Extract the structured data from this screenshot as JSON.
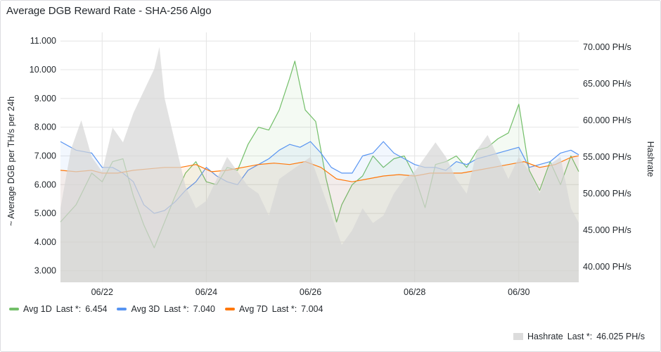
{
  "panel": {
    "title": "Average DGB Reward Rate - SHA-256 Algo"
  },
  "legend": {
    "items": [
      {
        "name": "Avg 1D",
        "last_label": "Last *:",
        "last_value": "6.454",
        "color": "#73bf69"
      },
      {
        "name": "Avg 3D",
        "last_label": "Last *:",
        "last_value": "7.040",
        "color": "#5794f2"
      },
      {
        "name": "Avg 7D",
        "last_label": "Last *:",
        "last_value": "7.004",
        "color": "#ff780a"
      }
    ],
    "hashrate": {
      "name": "Hashrate",
      "last_label": "Last *:",
      "last_value": "46.025 PH/s",
      "color": "#dcdcdc"
    }
  },
  "chart_data": {
    "type": "line",
    "title": "Average DGB Reward Rate - SHA-256 Algo",
    "ylabel": "~ Average DGB per TH/s per 24h",
    "y2label": "Hashrate",
    "x_ticks": [
      "06/22",
      "06/24",
      "06/26",
      "06/28",
      "06/30"
    ],
    "x_tick_days": [
      22,
      24,
      26,
      28,
      30
    ],
    "xlim": [
      21.2,
      31.15
    ],
    "ylim": [
      2.6,
      11.3
    ],
    "y_ticks": [
      "3.000",
      "4.000",
      "5.000",
      "6.000",
      "7.000",
      "8.000",
      "9.000",
      "10.000",
      "11.000"
    ],
    "y_tick_values": [
      3,
      4,
      5,
      6,
      7,
      8,
      9,
      10,
      11
    ],
    "y2lim": [
      37.9,
      72.0
    ],
    "y2_ticks": [
      "40.000 PH/s",
      "45.000 PH/s",
      "50.000 PH/s",
      "55.000 PH/s",
      "60.000 PH/s",
      "65.000 PH/s",
      "70.000 PH/s"
    ],
    "y2_tick_values": [
      40,
      45,
      50,
      55,
      60,
      65,
      70
    ],
    "grid": true,
    "series": [
      {
        "name": "Avg 1D",
        "axis": "left",
        "color": "#73bf69",
        "x": [
          21.2,
          21.5,
          21.8,
          22.0,
          22.2,
          22.4,
          22.6,
          22.8,
          23.0,
          23.2,
          23.4,
          23.6,
          23.8,
          24.0,
          24.2,
          24.4,
          24.6,
          24.8,
          25.0,
          25.2,
          25.4,
          25.6,
          25.7,
          25.9,
          26.1,
          26.3,
          26.5,
          26.6,
          26.8,
          27.0,
          27.2,
          27.4,
          27.6,
          27.8,
          28.0,
          28.2,
          28.4,
          28.6,
          28.8,
          29.0,
          29.2,
          29.4,
          29.6,
          29.8,
          30.0,
          30.2,
          30.4,
          30.6,
          30.8,
          31.0,
          31.15
        ],
        "values": [
          4.7,
          5.3,
          6.4,
          6.1,
          6.8,
          6.9,
          5.6,
          4.6,
          3.8,
          4.7,
          5.6,
          6.4,
          6.8,
          6.1,
          6.0,
          6.6,
          6.5,
          7.4,
          8.0,
          7.9,
          8.6,
          9.7,
          10.3,
          8.6,
          8.2,
          6.2,
          4.7,
          5.3,
          6.0,
          6.3,
          7.0,
          6.6,
          6.9,
          7.0,
          6.3,
          5.2,
          6.7,
          6.8,
          7.0,
          6.6,
          7.2,
          7.3,
          7.6,
          7.8,
          8.8,
          6.5,
          5.8,
          6.8,
          6.0,
          7.0,
          6.454
        ]
      },
      {
        "name": "Avg 3D",
        "axis": "left",
        "color": "#5794f2",
        "x": [
          21.2,
          21.5,
          21.8,
          22.0,
          22.2,
          22.4,
          22.6,
          22.8,
          23.0,
          23.2,
          23.4,
          23.6,
          23.8,
          24.0,
          24.2,
          24.4,
          24.6,
          24.8,
          25.0,
          25.2,
          25.4,
          25.6,
          25.8,
          26.0,
          26.2,
          26.4,
          26.6,
          26.8,
          27.0,
          27.2,
          27.4,
          27.6,
          27.8,
          28.0,
          28.2,
          28.4,
          28.6,
          28.8,
          29.0,
          29.2,
          29.4,
          29.6,
          29.8,
          30.0,
          30.2,
          30.4,
          30.6,
          30.8,
          31.0,
          31.15
        ],
        "values": [
          7.5,
          7.2,
          7.1,
          6.6,
          6.6,
          6.4,
          6.1,
          5.3,
          5.0,
          5.1,
          5.4,
          5.8,
          6.1,
          6.6,
          6.3,
          6.1,
          6.0,
          6.5,
          6.7,
          6.9,
          7.2,
          7.4,
          7.3,
          7.5,
          7.1,
          6.6,
          6.4,
          6.4,
          7.0,
          7.1,
          7.5,
          7.1,
          6.9,
          6.7,
          6.6,
          6.6,
          6.5,
          6.8,
          6.7,
          6.9,
          7.0,
          7.1,
          7.2,
          7.3,
          6.6,
          6.7,
          6.8,
          7.1,
          7.2,
          7.04
        ]
      },
      {
        "name": "Avg 7D",
        "axis": "left",
        "color": "#ff780a",
        "x": [
          21.2,
          21.5,
          21.8,
          22.0,
          22.3,
          22.6,
          22.9,
          23.2,
          23.5,
          23.8,
          24.1,
          24.4,
          24.7,
          25.0,
          25.3,
          25.6,
          25.9,
          26.2,
          26.5,
          26.8,
          27.1,
          27.4,
          27.7,
          28.0,
          28.3,
          28.6,
          28.9,
          29.2,
          29.5,
          29.8,
          30.1,
          30.4,
          30.7,
          31.0,
          31.15
        ],
        "values": [
          6.5,
          6.45,
          6.5,
          6.4,
          6.4,
          6.5,
          6.55,
          6.6,
          6.6,
          6.7,
          6.45,
          6.5,
          6.6,
          6.7,
          6.75,
          6.7,
          6.8,
          6.6,
          6.2,
          6.1,
          6.2,
          6.3,
          6.35,
          6.3,
          6.4,
          6.4,
          6.4,
          6.5,
          6.6,
          6.7,
          6.8,
          6.6,
          6.7,
          6.95,
          7.004
        ]
      },
      {
        "name": "Hashrate",
        "axis": "right",
        "color": "#dcdcdc",
        "x": [
          21.2,
          21.4,
          21.6,
          21.8,
          22.0,
          22.2,
          22.4,
          22.6,
          22.8,
          23.0,
          23.1,
          23.2,
          23.4,
          23.6,
          23.8,
          24.0,
          24.2,
          24.4,
          24.6,
          24.8,
          25.0,
          25.2,
          25.4,
          25.6,
          25.8,
          26.0,
          26.2,
          26.4,
          26.6,
          26.8,
          27.0,
          27.2,
          27.4,
          27.6,
          27.8,
          28.0,
          28.2,
          28.4,
          28.6,
          28.8,
          29.0,
          29.2,
          29.4,
          29.6,
          29.8,
          30.0,
          30.2,
          30.4,
          30.6,
          30.8,
          31.0,
          31.15
        ],
        "values": [
          48,
          56,
          60,
          55,
          53,
          59,
          57,
          61,
          64,
          67,
          70,
          63,
          57,
          51,
          48,
          49,
          52,
          55,
          53,
          51,
          50,
          47,
          52,
          53,
          54,
          55,
          51,
          47,
          43,
          45,
          48,
          46,
          47,
          50,
          52,
          53,
          55,
          57,
          55,
          52,
          50,
          56,
          58,
          55,
          52,
          55,
          53,
          50,
          54,
          55,
          48,
          46.025
        ]
      }
    ]
  }
}
